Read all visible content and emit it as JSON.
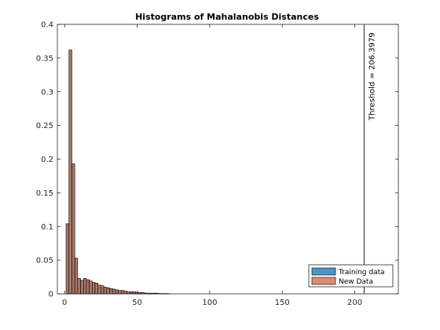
{
  "chart_data": {
    "type": "bar",
    "title": "Histograms of Mahalanobis Distances",
    "xlabel": "",
    "ylabel": "",
    "xlim": [
      -5,
      230
    ],
    "ylim": [
      0,
      0.4
    ],
    "xticks": [
      0,
      50,
      100,
      150,
      200
    ],
    "yticks": [
      0,
      0.05,
      0.1,
      0.15,
      0.2,
      0.25,
      0.3,
      0.35,
      0.4
    ],
    "ytick_labels": [
      "0",
      "0.05",
      "0.1",
      "0.15",
      "0.2",
      "0.25",
      "0.3",
      "0.35",
      "0.4"
    ],
    "xtick_labels": [
      "0",
      "50",
      "100",
      "150",
      "200"
    ],
    "bin_edges": [
      1,
      3,
      5,
      7,
      9,
      11,
      13,
      15,
      17,
      19,
      21,
      23,
      25,
      27,
      29,
      31,
      33,
      35,
      37,
      39,
      41,
      43,
      45,
      47,
      49,
      51,
      53,
      55,
      57,
      59,
      61,
      63,
      65,
      67,
      69,
      71,
      73
    ],
    "series": [
      {
        "name": "Training data",
        "color": "#4f93c9",
        "values": [
          0.104,
          0.362,
          0.193,
          0.053,
          0.023,
          0.02,
          0.023,
          0.021,
          0.019,
          0.017,
          0.016,
          0.013,
          0.012,
          0.01,
          0.009,
          0.008,
          0.007,
          0.006,
          0.005,
          0.005,
          0.004,
          0.003,
          0.003,
          0.003,
          0.002,
          0.002,
          0.002,
          0.001,
          0.001,
          0.001,
          0.001,
          0.001,
          0.0005,
          0.0005,
          0.0005,
          0.0003
        ]
      },
      {
        "name": "New Data",
        "color": "#d98f6f",
        "values": [
          0.104,
          0.362,
          0.193,
          0.053,
          0.023,
          0.02,
          0.023,
          0.021,
          0.019,
          0.017,
          0.016,
          0.013,
          0.012,
          0.01,
          0.009,
          0.008,
          0.007,
          0.006,
          0.005,
          0.005,
          0.004,
          0.003,
          0.003,
          0.003,
          0.002,
          0.002,
          0.002,
          0.001,
          0.001,
          0.001,
          0.001,
          0.001,
          0.0005,
          0.0005,
          0.0005,
          0.0003
        ]
      }
    ],
    "overlap_color": "#a87766",
    "threshold": {
      "value": 206.3979,
      "label": "Threshold = 206.3979"
    },
    "legend": {
      "placement": "bottom-right",
      "entries": [
        "Training data",
        "New Data"
      ]
    },
    "grid": false
  }
}
